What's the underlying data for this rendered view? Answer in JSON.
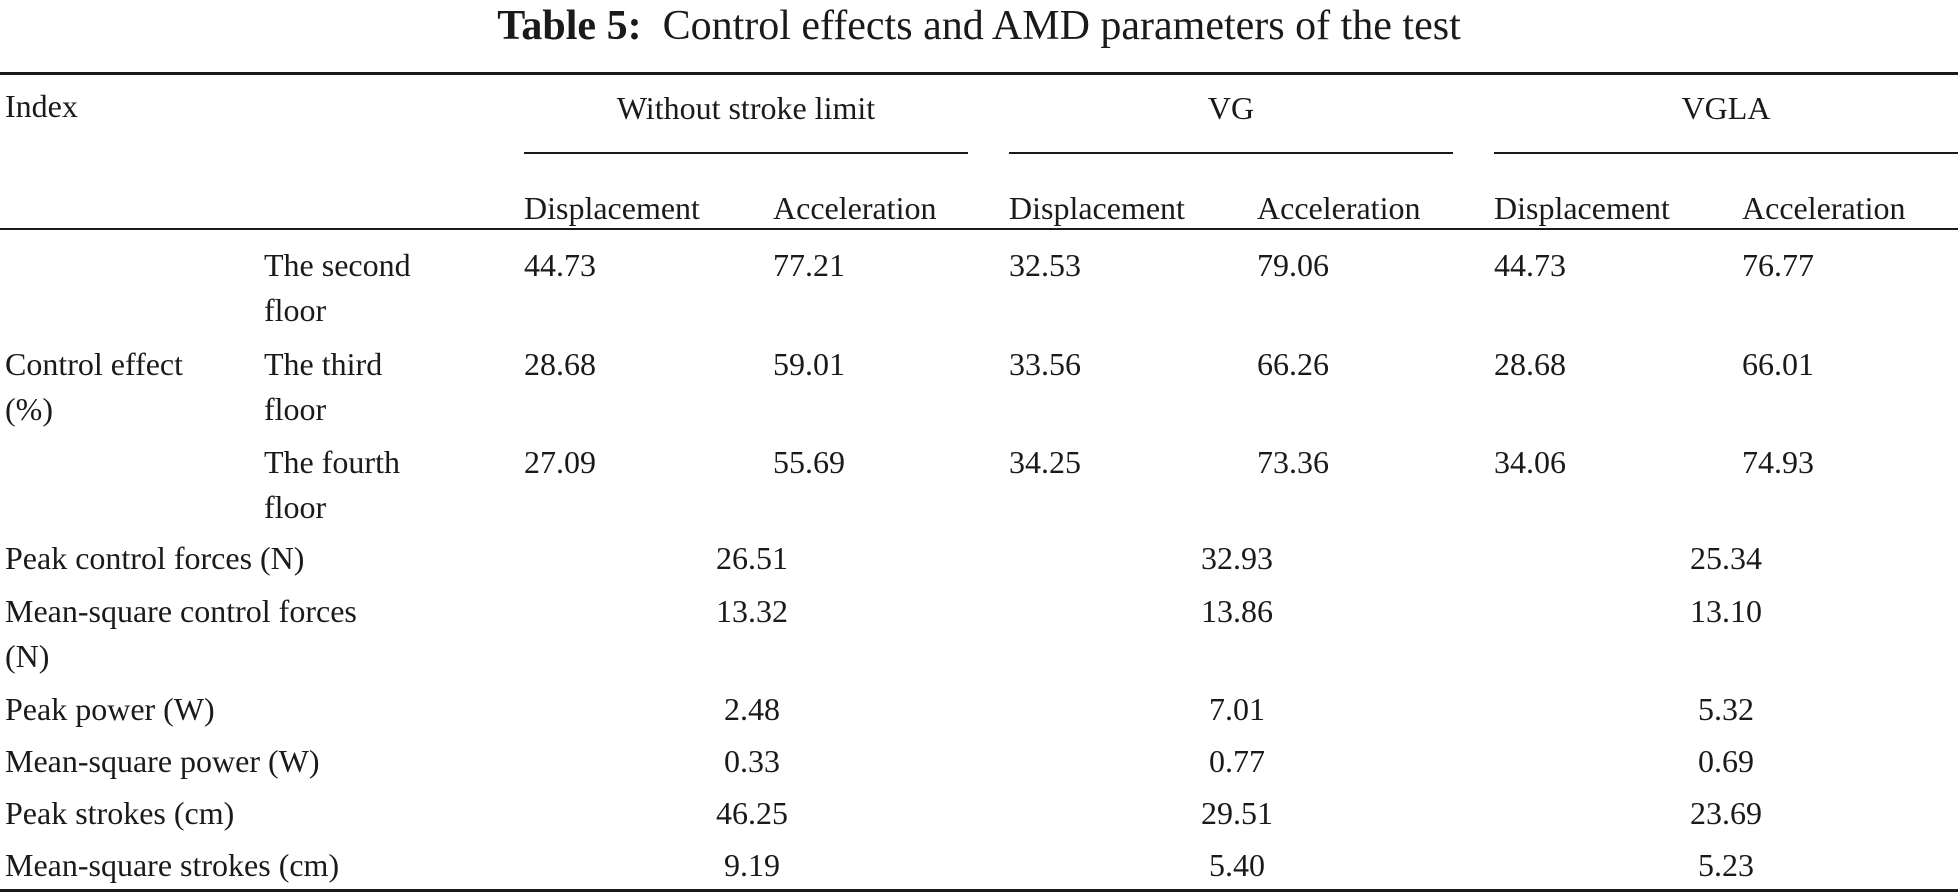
{
  "caption": {
    "label": "Table 5:",
    "title": "Control effects and AMD parameters of the test"
  },
  "header": {
    "index": "Index",
    "groups": [
      "Without stroke limit",
      "VG",
      "VGLA"
    ],
    "subcolumns": [
      "Displacement",
      "Acceleration",
      "Displacement",
      "Acceleration",
      "Displacement",
      "Acceleration"
    ]
  },
  "control_effect": {
    "label_line1": "Control effect",
    "label_line2": "(%)",
    "rows": [
      {
        "floor_line1": "The second",
        "floor_line2": "floor",
        "values": [
          "44.73",
          "77.21",
          "32.53",
          "79.06",
          "44.73",
          "76.77"
        ]
      },
      {
        "floor_line1": "The third",
        "floor_line2": "floor",
        "values": [
          "28.68",
          "59.01",
          "33.56",
          "66.26",
          "28.68",
          "66.01"
        ]
      },
      {
        "floor_line1": "The fourth",
        "floor_line2": "floor",
        "values": [
          "27.09",
          "55.69",
          "34.25",
          "73.36",
          "34.06",
          "74.93"
        ]
      }
    ]
  },
  "other_rows": [
    {
      "label_line1": "Peak control forces (N)",
      "label_line2": "",
      "values": [
        "26.51",
        "32.93",
        "25.34"
      ]
    },
    {
      "label_line1": "Mean-square control forces",
      "label_line2": "(N)",
      "values": [
        "13.32",
        "13.86",
        "13.10"
      ]
    },
    {
      "label_line1": "Peak power (W)",
      "label_line2": "",
      "values": [
        "2.48",
        "7.01",
        "5.32"
      ]
    },
    {
      "label_line1": "Mean-square power (W)",
      "label_line2": "",
      "values": [
        "0.33",
        "0.77",
        "0.69"
      ]
    },
    {
      "label_line1": "Peak strokes (cm)",
      "label_line2": "",
      "values": [
        "46.25",
        "29.51",
        "23.69"
      ]
    },
    {
      "label_line1": "Mean-square strokes (cm)",
      "label_line2": "",
      "values": [
        "9.19",
        "5.40",
        "5.23"
      ]
    }
  ]
}
